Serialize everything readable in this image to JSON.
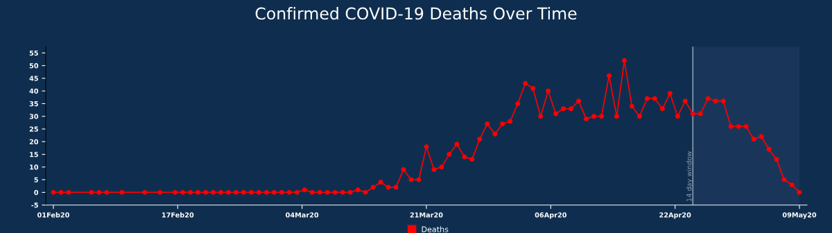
{
  "chart_data": {
    "type": "line",
    "title": "Confirmed COVID-19 Deaths Over Time",
    "x": [
      "2020-02-01",
      "2020-02-02",
      "2020-02-03",
      "2020-02-06",
      "2020-02-07",
      "2020-02-08",
      "2020-02-10",
      "2020-02-13",
      "2020-02-15",
      "2020-02-17",
      "2020-02-18",
      "2020-02-19",
      "2020-02-20",
      "2020-02-21",
      "2020-02-22",
      "2020-02-23",
      "2020-02-24",
      "2020-02-25",
      "2020-02-26",
      "2020-02-27",
      "2020-02-28",
      "2020-02-29",
      "2020-03-01",
      "2020-03-02",
      "2020-03-03",
      "2020-03-04",
      "2020-03-05",
      "2020-03-06",
      "2020-03-07",
      "2020-03-08",
      "2020-03-09",
      "2020-03-10",
      "2020-03-11",
      "2020-03-12",
      "2020-03-13",
      "2020-03-14",
      "2020-03-15",
      "2020-03-16",
      "2020-03-17",
      "2020-03-18",
      "2020-03-19",
      "2020-03-20",
      "2020-03-21",
      "2020-03-22",
      "2020-03-23",
      "2020-03-24",
      "2020-03-25",
      "2020-03-26",
      "2020-03-27",
      "2020-03-28",
      "2020-03-29",
      "2020-03-30",
      "2020-03-31",
      "2020-04-01",
      "2020-04-02",
      "2020-04-03",
      "2020-04-04",
      "2020-04-05",
      "2020-04-06",
      "2020-04-07",
      "2020-04-08",
      "2020-04-09",
      "2020-04-10",
      "2020-04-11",
      "2020-04-12",
      "2020-04-13",
      "2020-04-14",
      "2020-04-15",
      "2020-04-16",
      "2020-04-17",
      "2020-04-18",
      "2020-04-19",
      "2020-04-20",
      "2020-04-21",
      "2020-04-22",
      "2020-04-23",
      "2020-04-24",
      "2020-04-25",
      "2020-04-26",
      "2020-04-27",
      "2020-04-28",
      "2020-04-29",
      "2020-04-30",
      "2020-05-01",
      "2020-05-02",
      "2020-05-03",
      "2020-05-04",
      "2020-05-05",
      "2020-05-06",
      "2020-05-07",
      "2020-05-08",
      "2020-05-09"
    ],
    "series": [
      {
        "name": "Deaths",
        "color": "#ff0000",
        "values": [
          0,
          0,
          0,
          0,
          0,
          0,
          0,
          0,
          0,
          0,
          0,
          0,
          0,
          0,
          0,
          0,
          0,
          0,
          0,
          0,
          0,
          0,
          0,
          0,
          0,
          0,
          1,
          0,
          0,
          0,
          0,
          0,
          0,
          1,
          0,
          2,
          4,
          2,
          2,
          9,
          5,
          5,
          18,
          9,
          10,
          15,
          19,
          14,
          13,
          21,
          27,
          23,
          27,
          28,
          35,
          43,
          41,
          30,
          40,
          31,
          33,
          33,
          36,
          29,
          30,
          30,
          46,
          30,
          52,
          34,
          30,
          37,
          37,
          33,
          39,
          30,
          36,
          31,
          31,
          37,
          36,
          36,
          26,
          26,
          26,
          21,
          22,
          17,
          13,
          5,
          3,
          0
        ]
      }
    ],
    "xlim": [
      "2020-01-31",
      "2020-05-10"
    ],
    "xticks": [
      {
        "value": "2020-02-01",
        "label": "01Feb20"
      },
      {
        "value": "2020-02-17T08:00",
        "label": "17Feb20"
      },
      {
        "value": "2020-03-04T16:00",
        "label": "04Mar20"
      },
      {
        "value": "2020-03-21",
        "label": "21Mar20"
      },
      {
        "value": "2020-04-06T08:00",
        "label": "06Apr20"
      },
      {
        "value": "2020-04-22T16:00",
        "label": "22Apr20"
      },
      {
        "value": "2020-05-09",
        "label": "09May20"
      }
    ],
    "ylim": [
      -5,
      57.5
    ],
    "yticks": [
      -5,
      0,
      5,
      10,
      15,
      20,
      25,
      30,
      35,
      40,
      45,
      50,
      55
    ],
    "ref_lines": [
      {
        "axis": "x",
        "value": "2020-04-25",
        "label": "14 day window",
        "color": "#8a9bb0"
      }
    ],
    "bands": [
      {
        "axis": "x",
        "from": "2020-04-25",
        "to": "2020-05-09",
        "color": "#19365a"
      }
    ],
    "marker": "circle",
    "line_style": "solid",
    "grid": false,
    "legend": "bottom"
  }
}
